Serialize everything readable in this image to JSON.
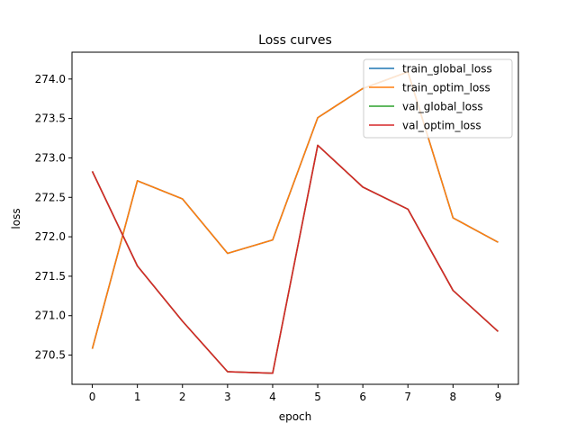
{
  "chart_data": {
    "type": "line",
    "title": "Loss curves",
    "xlabel": "epoch",
    "ylabel": "loss",
    "x": [
      0,
      1,
      2,
      3,
      4,
      5,
      6,
      7,
      8,
      9
    ],
    "xlim": [
      -0.45,
      9.45
    ],
    "ylim": [
      270.13,
      274.34
    ],
    "xticks": [
      0,
      1,
      2,
      3,
      4,
      5,
      6,
      7,
      8,
      9
    ],
    "yticks": [
      270.5,
      271.0,
      271.5,
      272.0,
      272.5,
      273.0,
      273.5,
      274.0
    ],
    "ytick_labels": [
      "270.5",
      "271.0",
      "271.5",
      "272.0",
      "272.5",
      "273.0",
      "273.5",
      "274.0"
    ],
    "grid": false,
    "legend_position": "top-right",
    "series": [
      {
        "name": "train_global_loss",
        "color": "#1f77b4",
        "values": [
          270.58,
          272.71,
          272.48,
          271.79,
          271.96,
          273.51,
          273.88,
          274.09,
          272.24,
          271.93
        ]
      },
      {
        "name": "train_optim_loss",
        "color": "#ff7f0e",
        "values": [
          270.58,
          272.71,
          272.48,
          271.79,
          271.96,
          273.51,
          273.88,
          274.09,
          272.24,
          271.93
        ]
      },
      {
        "name": "val_global_loss",
        "color": "#2ca02c",
        "values": [
          272.83,
          271.63,
          270.93,
          270.29,
          270.27,
          273.16,
          272.63,
          272.35,
          271.32,
          270.8
        ]
      },
      {
        "name": "val_optim_loss",
        "color": "#d62728",
        "values": [
          272.83,
          271.63,
          270.93,
          270.29,
          270.27,
          273.16,
          272.63,
          272.35,
          271.32,
          270.8
        ]
      }
    ]
  }
}
